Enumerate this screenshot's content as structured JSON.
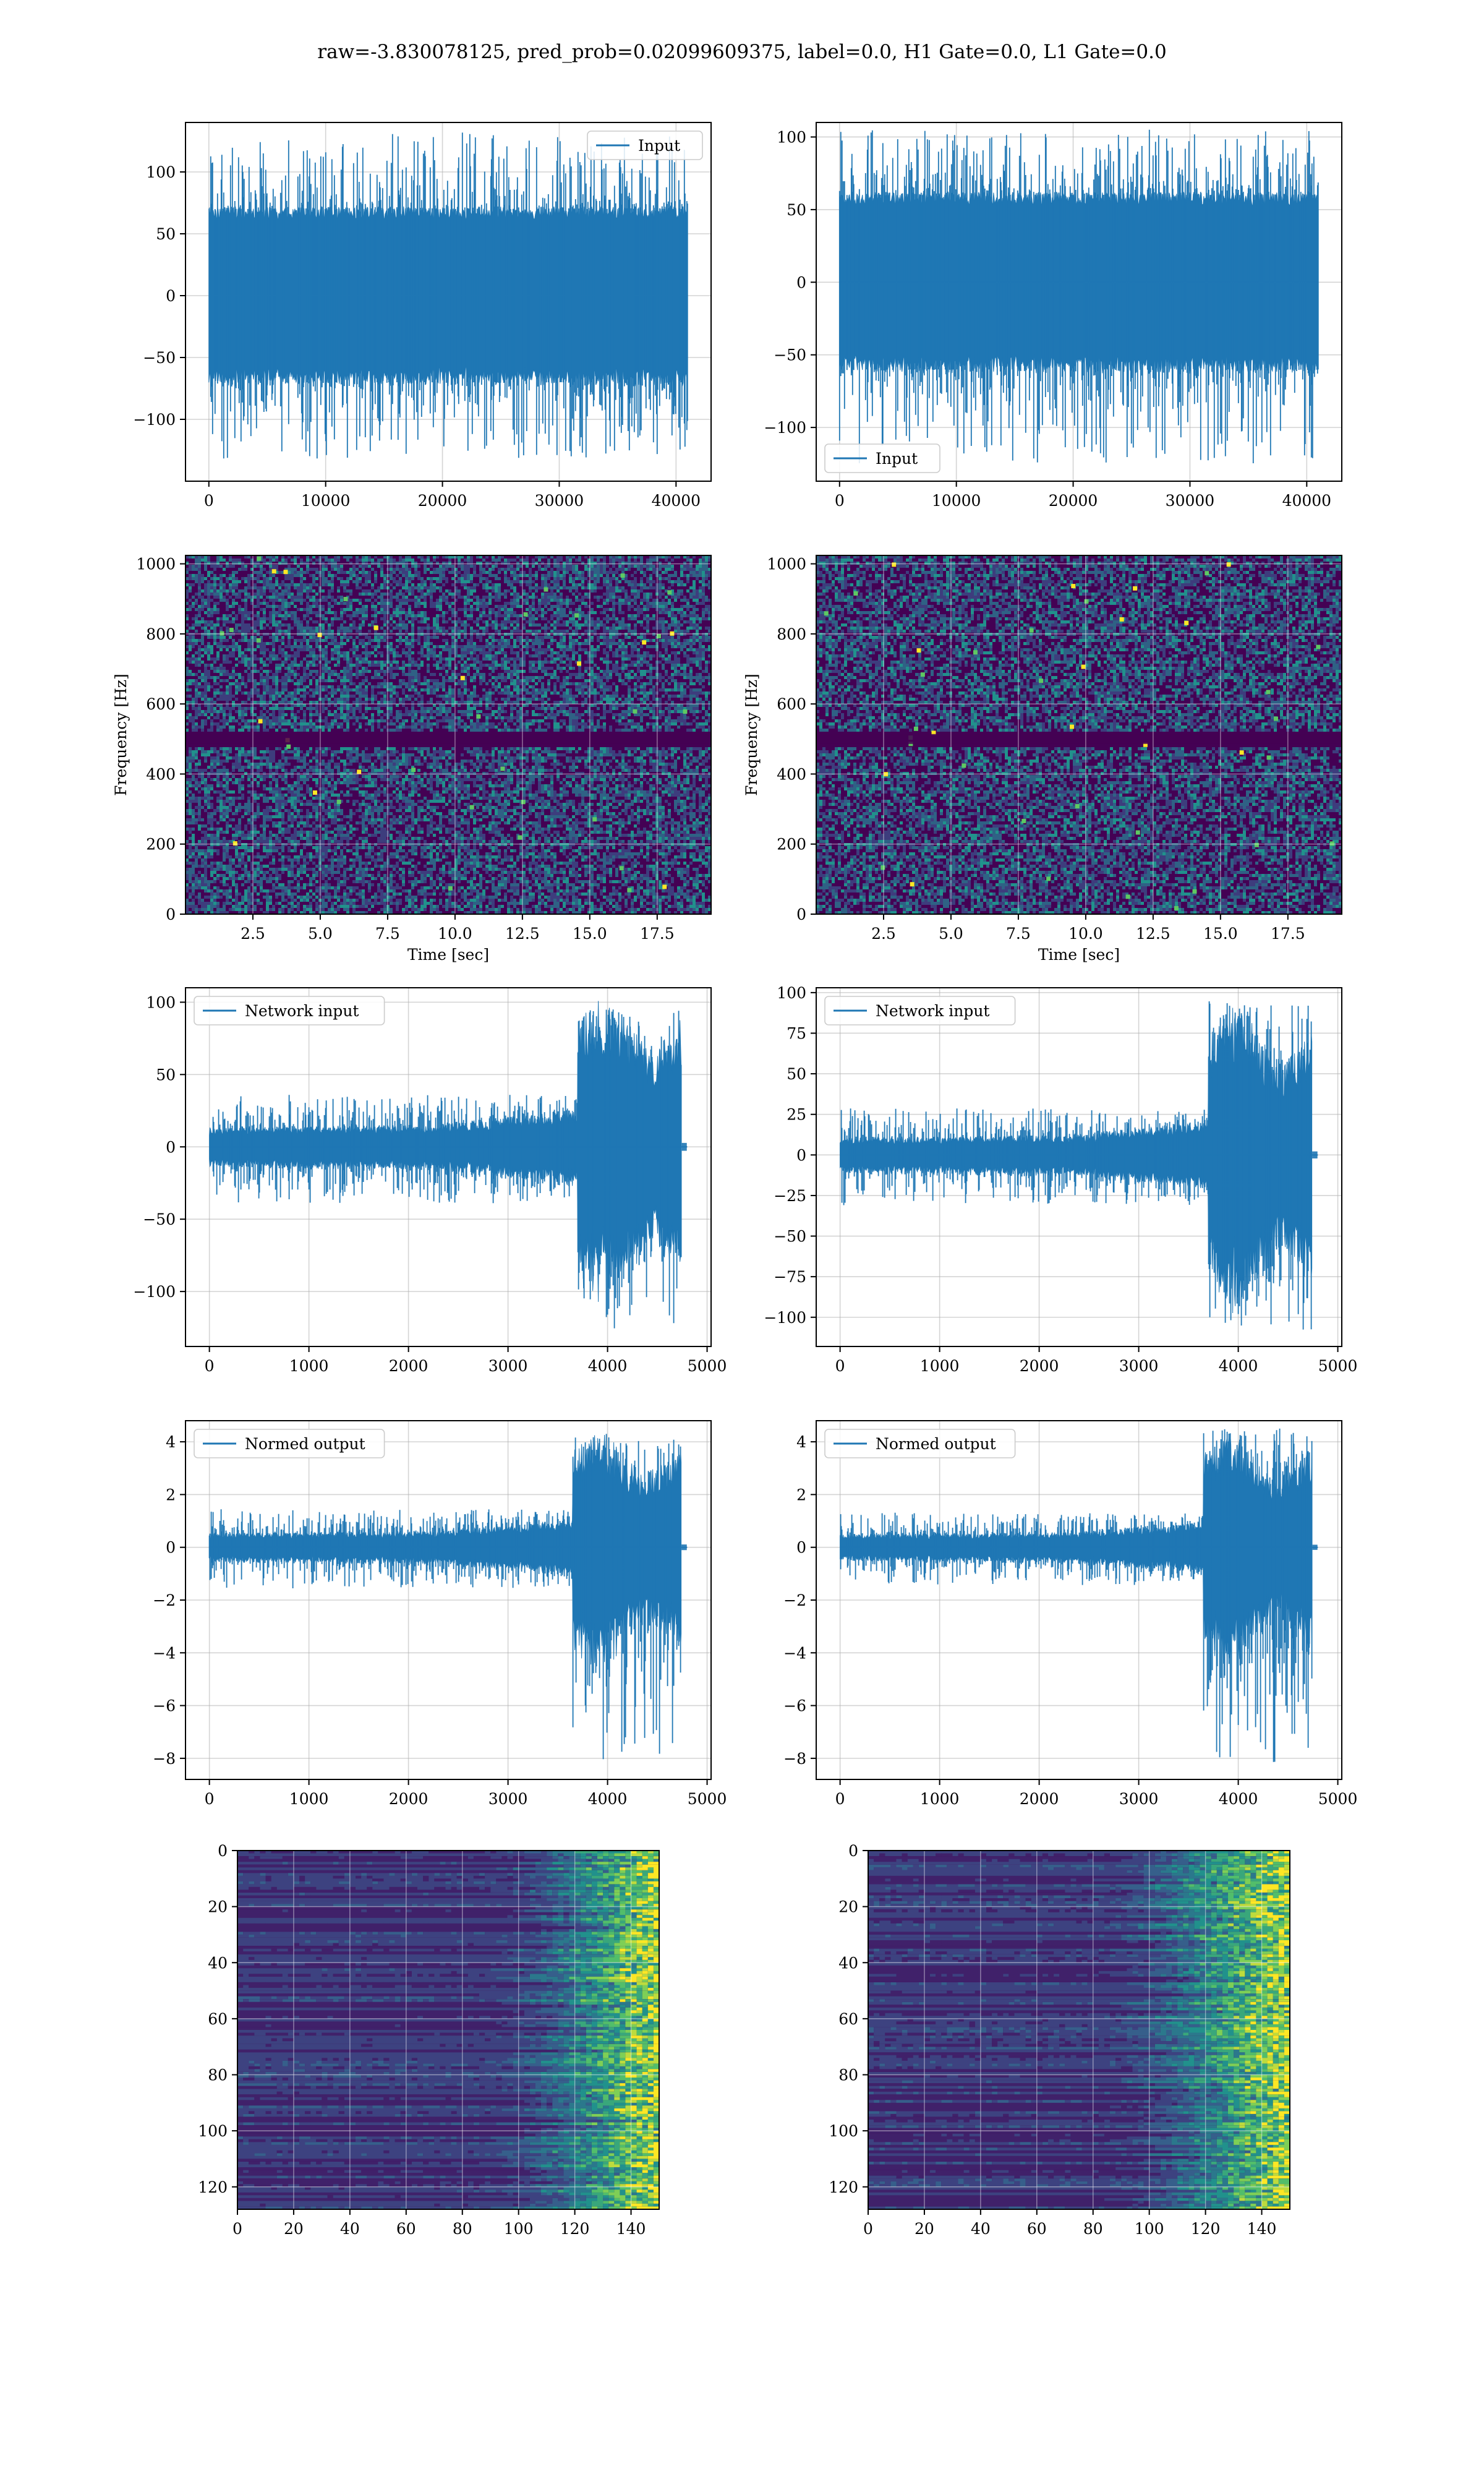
{
  "figure_title": "raw=-3.830078125, pred_prob=0.02099609375, label=0.0, H1 Gate=0.0, L1 Gate=0.0",
  "colors": {
    "line": "#1f77b4",
    "grid": "#b0b0b0",
    "viridis_dark": "#440154",
    "viridis_blue": "#31688e",
    "viridis_teal": "#21918c",
    "viridis_green": "#5ec962",
    "viridis_yellow": "#fde725"
  },
  "chart_data": [
    {
      "id": "input-h1",
      "type": "line",
      "legend": {
        "entries": [
          "Input"
        ],
        "placement": "upper right"
      },
      "xlim": [
        -2000,
        43000
      ],
      "ylim": [
        -150,
        140
      ],
      "xticks": [
        0,
        10000,
        20000,
        30000,
        40000
      ],
      "xtick_labels": [
        "0",
        "10000",
        "20000",
        "30000",
        "40000"
      ],
      "yticks": [
        -100,
        -50,
        0,
        50,
        100
      ],
      "ytick_labels": [
        "−100",
        "−50",
        "0",
        "50",
        "100"
      ],
      "series": [
        {
          "name": "Input",
          "shape": "stationary",
          "x_range": [
            0,
            41000
          ],
          "amplitude": 70,
          "peak_max": 132,
          "peak_min": -132
        }
      ],
      "grid": true
    },
    {
      "id": "input-l1",
      "type": "line",
      "legend": {
        "entries": [
          "Input"
        ],
        "placement": "lower left"
      },
      "xlim": [
        -2000,
        43000
      ],
      "ylim": [
        -137,
        110
      ],
      "xticks": [
        0,
        10000,
        20000,
        30000,
        40000
      ],
      "xtick_labels": [
        "0",
        "10000",
        "20000",
        "30000",
        "40000"
      ],
      "yticks": [
        -100,
        -50,
        0,
        50,
        100
      ],
      "ytick_labels": [
        "−100",
        "−50",
        "0",
        "50",
        "100"
      ],
      "series": [
        {
          "name": "Input",
          "shape": "stationary",
          "x_range": [
            0,
            41000
          ],
          "amplitude": 60,
          "peak_max": 105,
          "peak_min": -125
        }
      ],
      "grid": true
    },
    {
      "id": "spectrogram-h1",
      "type": "heatmap",
      "ylabel": "Frequency [Hz]",
      "xlabel": "Time [sec]",
      "xlim": [
        0,
        19.5
      ],
      "ylim": [
        0,
        1024
      ],
      "xticks": [
        2.5,
        5.0,
        7.5,
        10.0,
        12.5,
        15.0,
        17.5
      ],
      "xtick_labels": [
        "2.5",
        "5.0",
        "7.5",
        "10.0",
        "12.5",
        "15.0",
        "17.5"
      ],
      "yticks": [
        0,
        200,
        400,
        600,
        800,
        1000
      ],
      "ytick_labels": [
        "0",
        "200",
        "400",
        "600",
        "800",
        "1000"
      ],
      "dark_band_hz": 500,
      "grid": true
    },
    {
      "id": "spectrogram-l1",
      "type": "heatmap",
      "ylabel": "Frequency [Hz]",
      "xlabel": "Time [sec]",
      "xlim": [
        0,
        19.5
      ],
      "ylim": [
        0,
        1024
      ],
      "xticks": [
        2.5,
        5.0,
        7.5,
        10.0,
        12.5,
        15.0,
        17.5
      ],
      "xtick_labels": [
        "2.5",
        "5.0",
        "7.5",
        "10.0",
        "12.5",
        "15.0",
        "17.5"
      ],
      "yticks": [
        0,
        200,
        400,
        600,
        800,
        1000
      ],
      "ytick_labels": [
        "0",
        "200",
        "400",
        "600",
        "800",
        "1000"
      ],
      "dark_band_hz": 500,
      "grid": true
    },
    {
      "id": "network-input-h1",
      "type": "line",
      "legend": {
        "entries": [
          "Network input"
        ],
        "placement": "upper left"
      },
      "xlim": [
        -240,
        5040
      ],
      "ylim": [
        -138,
        110
      ],
      "xticks": [
        0,
        1000,
        2000,
        3000,
        4000,
        5000
      ],
      "xtick_labels": [
        "0",
        "1000",
        "2000",
        "3000",
        "4000",
        "5000"
      ],
      "yticks": [
        -100,
        -50,
        0,
        50,
        100
      ],
      "ytick_labels": [
        "−100",
        "−50",
        "0",
        "50",
        "100"
      ],
      "series": [
        {
          "name": "Network input",
          "shape": "chirp",
          "x_range": [
            0,
            4800
          ],
          "burst_start": 3700,
          "burst_end": 4740,
          "base_amp": 15,
          "peak_max": 95,
          "peak_min": -128
        }
      ],
      "grid": true
    },
    {
      "id": "network-input-l1",
      "type": "line",
      "legend": {
        "entries": [
          "Network input"
        ],
        "placement": "upper left"
      },
      "xlim": [
        -240,
        5040
      ],
      "ylim": [
        -118,
        103
      ],
      "xticks": [
        0,
        1000,
        2000,
        3000,
        4000,
        5000
      ],
      "xtick_labels": [
        "0",
        "1000",
        "2000",
        "3000",
        "4000",
        "5000"
      ],
      "yticks": [
        -100,
        -75,
        -50,
        -25,
        0,
        25,
        50,
        75,
        100
      ],
      "ytick_labels": [
        "−100",
        "−75",
        "−50",
        "−25",
        "0",
        "25",
        "50",
        "75",
        "100"
      ],
      "series": [
        {
          "name": "Network input",
          "shape": "chirp",
          "x_range": [
            0,
            4800
          ],
          "burst_start": 3700,
          "burst_end": 4740,
          "base_amp": 12,
          "peak_max": 95,
          "peak_min": -108
        }
      ],
      "grid": true
    },
    {
      "id": "normed-output-h1",
      "type": "line",
      "legend": {
        "entries": [
          "Normed output"
        ],
        "placement": "upper left"
      },
      "xlim": [
        -240,
        5040
      ],
      "ylim": [
        -8.8,
        4.8
      ],
      "xticks": [
        0,
        1000,
        2000,
        3000,
        4000,
        5000
      ],
      "xtick_labels": [
        "0",
        "1000",
        "2000",
        "3000",
        "4000",
        "5000"
      ],
      "yticks": [
        -8,
        -6,
        -4,
        -2,
        0,
        2,
        4
      ],
      "ytick_labels": [
        "−8",
        "−6",
        "−4",
        "−2",
        "0",
        "2",
        "4"
      ],
      "series": [
        {
          "name": "Normed output",
          "shape": "chirp",
          "x_range": [
            0,
            4800
          ],
          "burst_start": 3650,
          "burst_end": 4740,
          "base_amp": 0.6,
          "peak_max": 4.3,
          "peak_min": -8.2
        }
      ],
      "grid": true
    },
    {
      "id": "normed-output-l1",
      "type": "line",
      "legend": {
        "entries": [
          "Normed output"
        ],
        "placement": "upper left"
      },
      "xlim": [
        -240,
        5040
      ],
      "ylim": [
        -8.8,
        4.8
      ],
      "xticks": [
        0,
        1000,
        2000,
        3000,
        4000,
        5000
      ],
      "xtick_labels": [
        "0",
        "1000",
        "2000",
        "3000",
        "4000",
        "5000"
      ],
      "yticks": [
        -8,
        -6,
        -4,
        -2,
        0,
        2,
        4
      ],
      "ytick_labels": [
        "−8",
        "−6",
        "−4",
        "−2",
        "0",
        "2",
        "4"
      ],
      "series": [
        {
          "name": "Normed output",
          "shape": "chirp",
          "x_range": [
            0,
            4800
          ],
          "burst_start": 3650,
          "burst_end": 4740,
          "base_amp": 0.55,
          "peak_max": 4.5,
          "peak_min": -8.3
        }
      ],
      "grid": true
    },
    {
      "id": "feature-map-h1",
      "type": "heatmap",
      "xlim": [
        0,
        150
      ],
      "ylim": [
        128,
        0
      ],
      "xticks": [
        0,
        20,
        40,
        60,
        80,
        100,
        120,
        140
      ],
      "xtick_labels": [
        "0",
        "20",
        "40",
        "60",
        "80",
        "100",
        "120",
        "140"
      ],
      "yticks": [
        0,
        20,
        40,
        60,
        80,
        100,
        120
      ],
      "ytick_labels": [
        "0",
        "20",
        "40",
        "60",
        "80",
        "100",
        "120"
      ],
      "active_from_col": 90,
      "grid": true
    },
    {
      "id": "feature-map-l1",
      "type": "heatmap",
      "xlim": [
        0,
        150
      ],
      "ylim": [
        128,
        0
      ],
      "xticks": [
        0,
        20,
        40,
        60,
        80,
        100,
        120,
        140
      ],
      "xtick_labels": [
        "0",
        "20",
        "40",
        "60",
        "80",
        "100",
        "120",
        "140"
      ],
      "yticks": [
        0,
        20,
        40,
        60,
        80,
        100,
        120
      ],
      "ytick_labels": [
        "0",
        "20",
        "40",
        "60",
        "80",
        "100",
        "120"
      ],
      "active_from_col": 85,
      "grid": true
    }
  ]
}
